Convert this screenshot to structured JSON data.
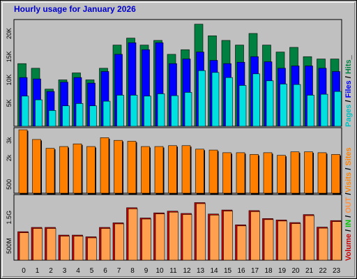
{
  "title": "Hourly usage for January 2026",
  "colors": {
    "pages": "#00e0e0",
    "files": "#0000ff",
    "hits": "#008040",
    "visits": "#ff8000",
    "sites": "#ff8000",
    "kbin": "#00c000",
    "kbout": "#ffa050",
    "volume": "#cc0000"
  },
  "chart_data": [
    {
      "type": "bar",
      "panel": "top",
      "categories": [
        "0",
        "1",
        "2",
        "3",
        "4",
        "5",
        "6",
        "7",
        "8",
        "9",
        "10",
        "11",
        "12",
        "13",
        "14",
        "15",
        "16",
        "17",
        "18",
        "19",
        "20",
        "21",
        "22",
        "23"
      ],
      "side_label": {
        "pages": "Pages",
        "sep1": " / ",
        "files": "Files",
        "sep2": " / ",
        "hits": "Hits",
        "sep3": "_"
      },
      "y_ticks": [
        "5K",
        "10K",
        "15K",
        "20K"
      ],
      "y_tick_values": [
        5000,
        10000,
        15000,
        20000
      ],
      "ylim": [
        0,
        23000
      ],
      "series": [
        {
          "name": "Hits",
          "values": [
            13500,
            12500,
            8000,
            10000,
            11500,
            10000,
            12500,
            17500,
            19000,
            17500,
            18500,
            15500,
            16500,
            22000,
            19500,
            18500,
            17500,
            20000,
            17500,
            16000,
            17000,
            15000,
            14500,
            14500
          ]
        },
        {
          "name": "Files",
          "values": [
            10500,
            10200,
            7500,
            9500,
            10500,
            9300,
            11800,
            15500,
            18000,
            16500,
            18000,
            13500,
            14500,
            16000,
            14200,
            13500,
            13800,
            15000,
            13900,
            12500,
            13000,
            13000,
            12500,
            11800
          ]
        },
        {
          "name": "Pages",
          "values": [
            6500,
            5700,
            3400,
            4400,
            4900,
            4400,
            5400,
            6700,
            6700,
            6500,
            7000,
            6600,
            7300,
            12000,
            11600,
            10500,
            8800,
            11300,
            9800,
            9100,
            9000,
            6700,
            6900,
            7500
          ]
        }
      ]
    },
    {
      "type": "bar",
      "panel": "middle",
      "categories": [
        "0",
        "1",
        "2",
        "3",
        "4",
        "5",
        "6",
        "7",
        "8",
        "9",
        "10",
        "11",
        "12",
        "13",
        "14",
        "15",
        "16",
        "17",
        "18",
        "19",
        "20",
        "21",
        "22",
        "23"
      ],
      "side_label": {
        "visits": "Visits",
        "sep1": " / ",
        "sites": "Sites"
      },
      "y_ticks": [
        "500",
        "2k",
        "3k"
      ],
      "y_tick_values": [
        500,
        2000,
        3000
      ],
      "ylim": [
        0,
        3720
      ],
      "series": [
        {
          "name": "Visits",
          "values": [
            3600,
            3050,
            2550,
            2650,
            2800,
            2650,
            3150,
            3000,
            2950,
            2650,
            2650,
            2700,
            2700,
            2500,
            2450,
            2300,
            2300,
            2200,
            2300,
            2150,
            2350,
            2350,
            2300,
            2200
          ]
        }
      ]
    },
    {
      "type": "bar",
      "panel": "bottom",
      "categories": [
        "0",
        "1",
        "2",
        "3",
        "4",
        "5",
        "6",
        "7",
        "8",
        "9",
        "10",
        "11",
        "12",
        "13",
        "14",
        "15",
        "16",
        "17",
        "18",
        "19",
        "20",
        "21",
        "22",
        "23"
      ],
      "side_label": {
        "volume": "Volume",
        "sep1": " / ",
        "kbin": "IN",
        "sep2": " / ",
        "kbout": "OUT",
        "sep3": " / "
      },
      "y_ticks": [
        "500M",
        "1.5G"
      ],
      "y_tick_values": [
        500,
        1500
      ],
      "ylim": [
        0,
        2300
      ],
      "series": [
        {
          "name": "Volume",
          "values": [
            1000,
            1150,
            1150,
            880,
            880,
            820,
            1150,
            1310,
            1840,
            1480,
            1660,
            1720,
            1640,
            2020,
            1620,
            1760,
            1240,
            1740,
            1460,
            1410,
            1320,
            1600,
            1160,
            1390
          ]
        }
      ]
    }
  ]
}
